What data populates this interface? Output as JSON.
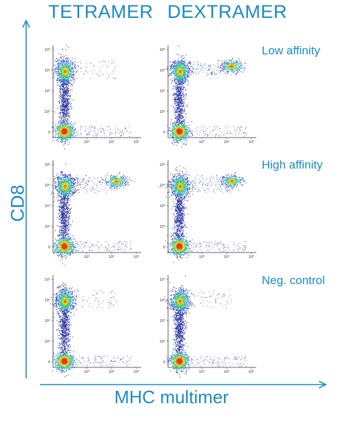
{
  "headers": {
    "tetramer": "TETRAMER",
    "dextramer": "DEXTRAMER"
  },
  "rows": [
    {
      "label": "Low affinity"
    },
    {
      "label": "High affinity"
    },
    {
      "label": "Neg. control"
    }
  ],
  "axes": {
    "y_title": "CD8",
    "x_title": "MHC multimer"
  },
  "colors": {
    "accent": "#1a8bc4",
    "density_low": "#2b3a9c",
    "density_high": "#e03020"
  },
  "chart_data": {
    "type": "scatter",
    "x_ticks": [
      "0",
      "10³",
      "10⁴",
      "10⁵"
    ],
    "y_ticks": [
      "0",
      "10²",
      "10³",
      "10⁴",
      "10⁵"
    ],
    "panels": [
      {
        "row": "Low affinity",
        "column": "TETRAMER",
        "positive_cluster": null
      },
      {
        "row": "Low affinity",
        "column": "DEXTRAMER",
        "positive_cluster": {
          "multimer": "~10^4",
          "cd8": "~10^4"
        }
      },
      {
        "row": "High affinity",
        "column": "TETRAMER",
        "positive_cluster": {
          "multimer": "~10^4",
          "cd8": "~10^4"
        }
      },
      {
        "row": "High affinity",
        "column": "DEXTRAMER",
        "positive_cluster": {
          "multimer": "~10^4",
          "cd8": "~10^4"
        }
      },
      {
        "row": "Neg. control",
        "column": "TETRAMER",
        "positive_cluster": null
      },
      {
        "row": "Neg. control",
        "column": "DEXTRAMER",
        "positive_cluster": null
      }
    ]
  }
}
